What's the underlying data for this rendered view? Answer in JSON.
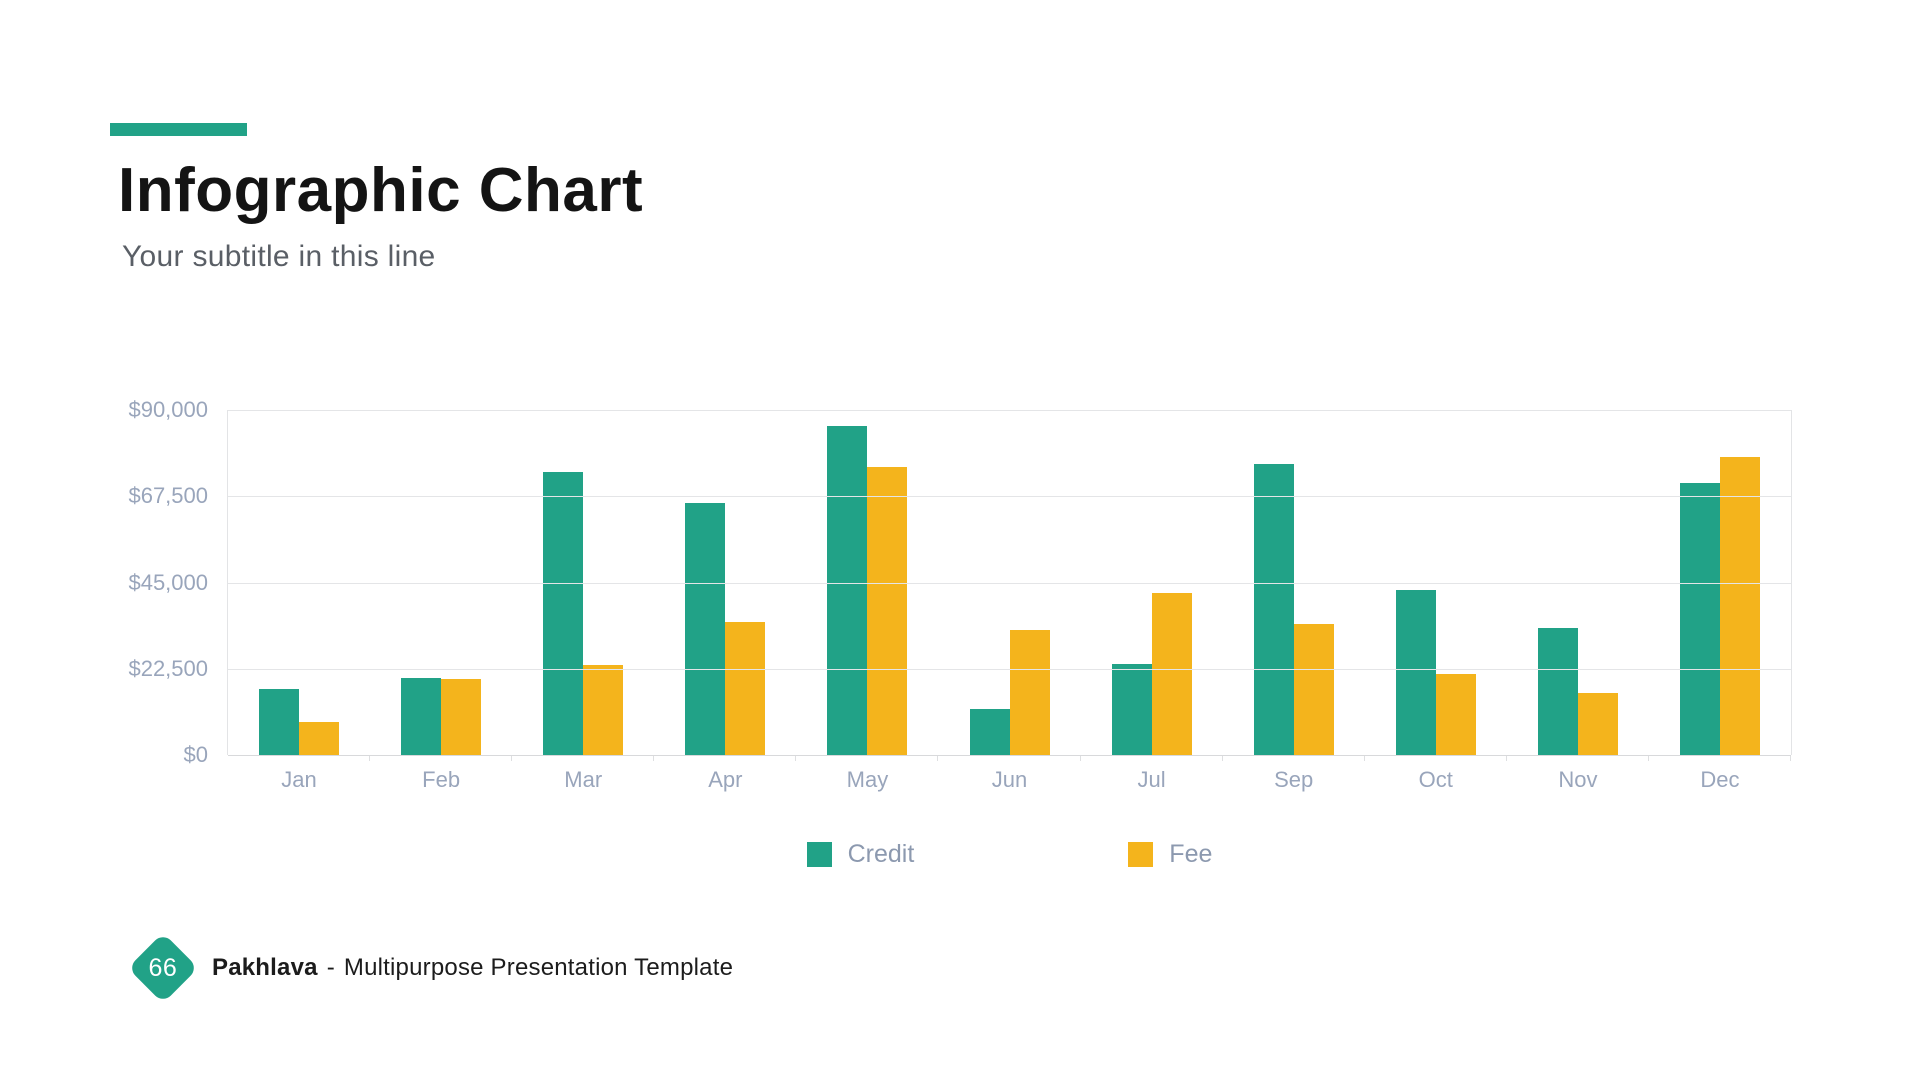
{
  "header": {
    "title": "Infographic Chart",
    "subtitle": "Your subtitle in this line"
  },
  "footer": {
    "page_number": "66",
    "brand": "Pakhlava",
    "separator": "-",
    "description": "Multipurpose Presentation Template"
  },
  "colors": {
    "accent_green": "#21A287",
    "accent_yellow": "#F4B41C",
    "axis_text": "#99A5BB",
    "legend_text": "#8C99AF",
    "gridline": "#E4E5E7",
    "title_text": "#141414",
    "subtitle_text": "#5A5F66"
  },
  "chart_data": {
    "type": "bar",
    "title": "",
    "xlabel": "",
    "ylabel": "",
    "categories": [
      "Jan",
      "Feb",
      "Mar",
      "Apr",
      "May",
      "Jun",
      "Jul",
      "Sep",
      "Oct",
      "Nov",
      "Dec"
    ],
    "series": [
      {
        "name": "Credit",
        "color": "#21A287",
        "values": [
          17200,
          20100,
          73800,
          65700,
          85800,
          12000,
          23700,
          75900,
          43000,
          33100,
          70900
        ]
      },
      {
        "name": "Fee",
        "color": "#F4B41C",
        "values": [
          8600,
          19800,
          23500,
          34700,
          75100,
          32700,
          42200,
          34200,
          21100,
          16200,
          77700
        ]
      }
    ],
    "ylim": [
      0,
      90000
    ],
    "y_ticks": [
      {
        "value": 90000,
        "label": "$90,000"
      },
      {
        "value": 67500,
        "label": "$67,500"
      },
      {
        "value": 45000,
        "label": "$45,000"
      },
      {
        "value": 22500,
        "label": "$22,500"
      },
      {
        "value": 0,
        "label": "$0"
      }
    ],
    "grid": true,
    "legend_position": "bottom"
  }
}
